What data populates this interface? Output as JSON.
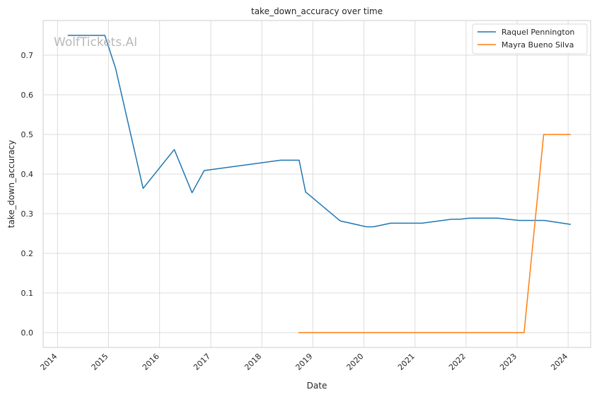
{
  "chart_data": {
    "type": "line",
    "title": "take_down_accuracy over time",
    "xlabel": "Date",
    "ylabel": "take_down_accuracy",
    "watermark": "WolfTickets.AI",
    "x_ticks": [
      "2014",
      "2015",
      "2016",
      "2017",
      "2018",
      "2019",
      "2020",
      "2021",
      "2022",
      "2023",
      "2024"
    ],
    "y_ticks": [
      "0.0",
      "0.1",
      "0.2",
      "0.3",
      "0.4",
      "0.5",
      "0.6",
      "0.7"
    ],
    "xlim": [
      "2013-09-20",
      "2024-06-10"
    ],
    "ylim": [
      -0.0375,
      0.7875
    ],
    "grid": true,
    "legend_position": "top-right",
    "series": [
      {
        "name": "Raquel Pennington",
        "color": "#1f77b4",
        "points": [
          [
            "2014-03-15",
            0.75
          ],
          [
            "2014-12-05",
            0.75
          ],
          [
            "2015-02-20",
            0.667
          ],
          [
            "2015-09-05",
            0.364
          ],
          [
            "2016-04-15",
            0.462
          ],
          [
            "2016-08-20",
            0.353
          ],
          [
            "2016-11-15",
            0.409
          ],
          [
            "2018-05-15",
            0.435
          ],
          [
            "2018-09-25",
            0.435
          ],
          [
            "2018-11-10",
            0.355
          ],
          [
            "2019-07-15",
            0.282
          ],
          [
            "2020-01-20",
            0.267
          ],
          [
            "2020-03-10",
            0.267
          ],
          [
            "2020-07-10",
            0.276
          ],
          [
            "2021-02-20",
            0.276
          ],
          [
            "2021-09-20",
            0.286
          ],
          [
            "2021-11-20",
            0.286
          ],
          [
            "2022-01-25",
            0.289
          ],
          [
            "2022-08-15",
            0.289
          ],
          [
            "2023-01-15",
            0.283
          ],
          [
            "2023-07-15",
            0.283
          ],
          [
            "2024-01-20",
            0.273
          ]
        ]
      },
      {
        "name": "Mayra Bueno Silva",
        "color": "#ff7f0e",
        "points": [
          [
            "2018-09-20",
            0.0
          ],
          [
            "2023-02-20",
            0.0
          ],
          [
            "2023-07-10",
            0.5
          ],
          [
            "2024-01-20",
            0.5
          ]
        ]
      }
    ]
  }
}
